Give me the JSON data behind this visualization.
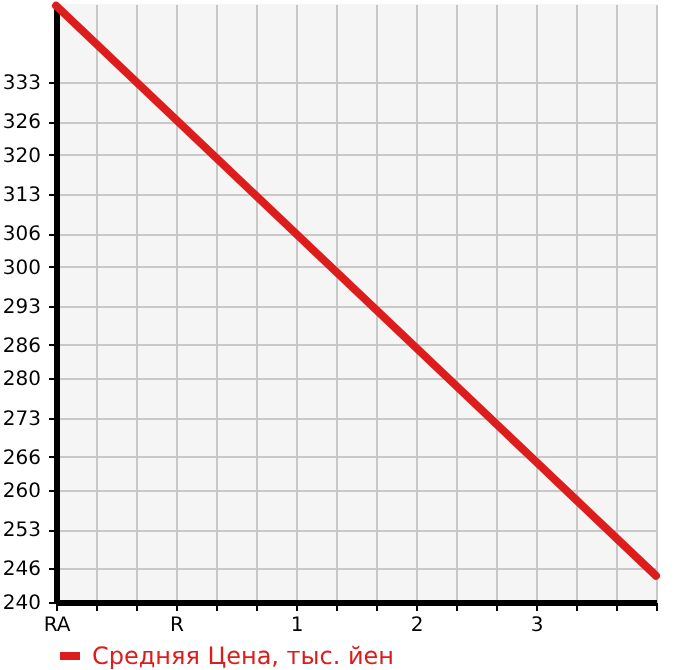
{
  "chart_data": {
    "type": "line",
    "categories": [
      "RA",
      null,
      null,
      "R",
      null,
      null,
      "1",
      null,
      null,
      "2",
      null,
      null,
      "3",
      null,
      null,
      null
    ],
    "series": [
      {
        "name": "Средняя Цена, тыс. йен",
        "color": "#dd1c1c",
        "values": [
          346.7,
          339.9,
          333.1,
          326.3,
          319.5,
          312.7,
          305.9,
          299.1,
          292.3,
          285.5,
          278.7,
          271.9,
          265.1,
          258.3,
          251.5,
          244.7
        ]
      }
    ],
    "ylim": [
      240,
      347
    ],
    "yticks": [
      240,
      246,
      253,
      260,
      266,
      273,
      280,
      286,
      293,
      300,
      306,
      313,
      320,
      326,
      333
    ],
    "grid": true,
    "legend": "bottom",
    "marker": "none",
    "line_style": "solid"
  }
}
